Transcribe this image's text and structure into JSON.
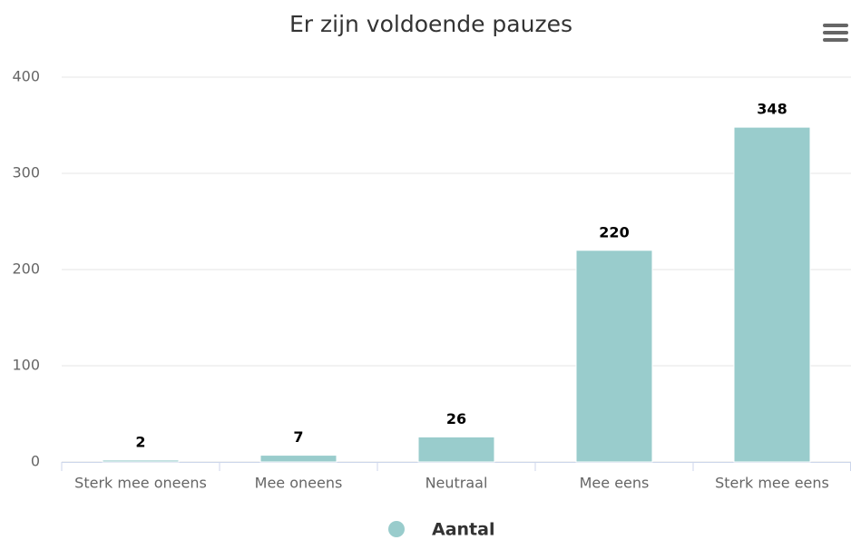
{
  "chart_data": {
    "type": "bar",
    "title": "Er zijn voldoende pauzes",
    "categories": [
      "Sterk mee oneens",
      "Mee oneens",
      "Neutraal",
      "Mee eens",
      "Sterk mee eens"
    ],
    "series": [
      {
        "name": "Aantal",
        "color": "#99cccc",
        "values": [
          2,
          7,
          26,
          220,
          348
        ]
      }
    ],
    "ylim": [
      0,
      400
    ],
    "yticks": [
      0,
      100,
      200,
      300,
      400
    ],
    "grid": true,
    "legend": "bottom"
  }
}
